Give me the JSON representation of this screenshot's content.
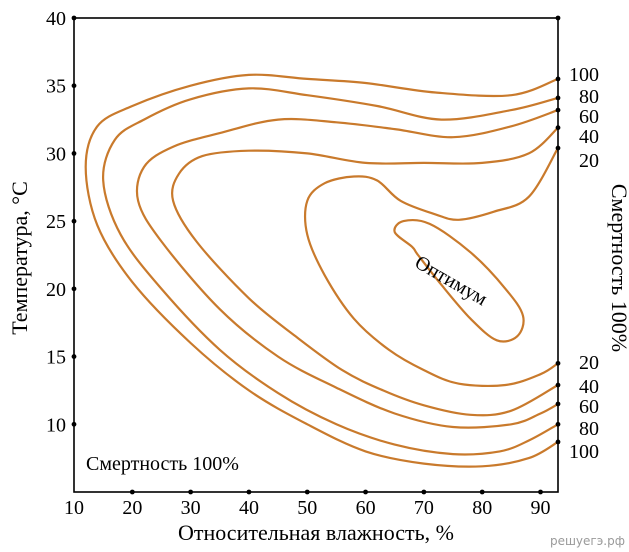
{
  "chart_data": {
    "type": "contour",
    "xlabel": "Относительная влажность, %",
    "ylabel": "Температура, °С",
    "right_label": "Смертность 100%",
    "bottom_left_label": "Смертность 100%",
    "optimum_label": "Оптимум",
    "xlim": [
      10,
      93
    ],
    "ylim": [
      5,
      40
    ],
    "x_ticks": [
      10,
      20,
      30,
      40,
      50,
      60,
      70,
      80,
      90
    ],
    "y_ticks": [
      10,
      15,
      20,
      25,
      30,
      35,
      40
    ],
    "right_upper_ticks": [
      "100",
      "80",
      "60",
      "40",
      "20"
    ],
    "right_lower_ticks": [
      "20",
      "40",
      "60",
      "80",
      "100"
    ],
    "contours": [
      {
        "level": "100",
        "points": [
          [
            93,
            35.5
          ],
          [
            85,
            34.3
          ],
          [
            72,
            34.5
          ],
          [
            60,
            35.2
          ],
          [
            50,
            35.5
          ],
          [
            40,
            35.8
          ],
          [
            30,
            35
          ],
          [
            20,
            33.5
          ],
          [
            14,
            32
          ],
          [
            12,
            29
          ],
          [
            14,
            24.7
          ],
          [
            20,
            20.5
          ],
          [
            30,
            16
          ],
          [
            40,
            12.5
          ],
          [
            50,
            10
          ],
          [
            60,
            8
          ],
          [
            70,
            7.1
          ],
          [
            80,
            6.9
          ],
          [
            88,
            7.5
          ],
          [
            93,
            8.7
          ]
        ]
      },
      {
        "level": "80",
        "points": [
          [
            93,
            34.1
          ],
          [
            85,
            33.2
          ],
          [
            73,
            32.5
          ],
          [
            62,
            33.5
          ],
          [
            50,
            34.3
          ],
          [
            40,
            34.8
          ],
          [
            30,
            34
          ],
          [
            22,
            32.5
          ],
          [
            17,
            31
          ],
          [
            15,
            28
          ],
          [
            18,
            24
          ],
          [
            25,
            20
          ],
          [
            35,
            15.5
          ],
          [
            45,
            12.3
          ],
          [
            55,
            10
          ],
          [
            65,
            8.5
          ],
          [
            75,
            7.8
          ],
          [
            83,
            8
          ],
          [
            88,
            8.8
          ],
          [
            93,
            10
          ]
        ]
      },
      {
        "level": "60",
        "points": [
          [
            93,
            33.2
          ],
          [
            85,
            32
          ],
          [
            75,
            31.2
          ],
          [
            65,
            31.8
          ],
          [
            55,
            32.3
          ],
          [
            45,
            32.5
          ],
          [
            35,
            31.5
          ],
          [
            27,
            30.5
          ],
          [
            22,
            29
          ],
          [
            21,
            26.5
          ],
          [
            25,
            23.5
          ],
          [
            35,
            18.5
          ],
          [
            45,
            15
          ],
          [
            55,
            12.7
          ],
          [
            65,
            10.8
          ],
          [
            75,
            9.8
          ],
          [
            85,
            10
          ],
          [
            90,
            10.8
          ],
          [
            93,
            11.5
          ]
        ]
      },
      {
        "level": "40",
        "points": [
          [
            93,
            31.9
          ],
          [
            88,
            30
          ],
          [
            80,
            29.3
          ],
          [
            70,
            29.3
          ],
          [
            60,
            29.3
          ],
          [
            50,
            30
          ],
          [
            40,
            30.2
          ],
          [
            32,
            29.8
          ],
          [
            28,
            28.5
          ],
          [
            27,
            26.5
          ],
          [
            31,
            23.5
          ],
          [
            40,
            19.3
          ],
          [
            48,
            16.5
          ],
          [
            56,
            14
          ],
          [
            63,
            12.5
          ],
          [
            70,
            11.4
          ],
          [
            78,
            10.7
          ],
          [
            85,
            11
          ],
          [
            93,
            12.9
          ]
        ]
      },
      {
        "level": "20",
        "points": [
          [
            93,
            30.4
          ],
          [
            88,
            26.8
          ],
          [
            82,
            25.7
          ],
          [
            76,
            25.1
          ],
          [
            72,
            25.5
          ],
          [
            66,
            26.5
          ],
          [
            62,
            28
          ],
          [
            58,
            28.3
          ],
          [
            53,
            27.8
          ],
          [
            50,
            26.5
          ],
          [
            50,
            24
          ],
          [
            53,
            21
          ],
          [
            58,
            17.8
          ],
          [
            64,
            15.5
          ],
          [
            70,
            14
          ],
          [
            76,
            13
          ],
          [
            84,
            12.9
          ],
          [
            90,
            13.7
          ],
          [
            93,
            14.5
          ]
        ]
      },
      {
        "level": "optimum",
        "closed": true,
        "points": [
          [
            68,
            23.1
          ],
          [
            65,
            24.2
          ],
          [
            66.5,
            25
          ],
          [
            71,
            24.8
          ],
          [
            78,
            22.7
          ],
          [
            84,
            20
          ],
          [
            87,
            18
          ],
          [
            86,
            16.5
          ],
          [
            82.5,
            16.2
          ],
          [
            78,
            17.8
          ],
          [
            73,
            20.3
          ],
          [
            69,
            22.5
          ]
        ]
      }
    ]
  },
  "watermark": "решуегэ.рф",
  "colors": {
    "contour": "#c97a2c",
    "axis": "#000000",
    "background": "#ffffff"
  }
}
